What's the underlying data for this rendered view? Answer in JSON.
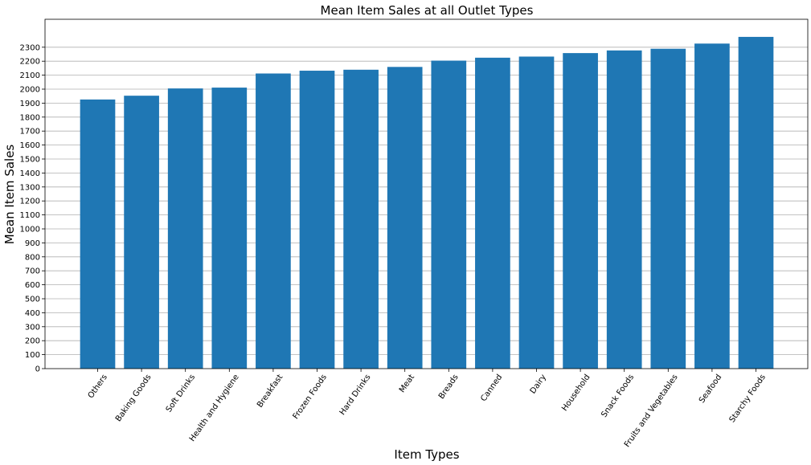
{
  "chart_data": {
    "type": "bar",
    "title": "Mean Item Sales at all Outlet Types",
    "xlabel": "Item Types",
    "ylabel": "Mean Item Sales",
    "categories": [
      "Others",
      "Baking Goods",
      "Soft Drinks",
      "Health and Hygiene",
      "Breakfast",
      "Frozen Foods",
      "Hard Drinks",
      "Meat",
      "Breads",
      "Canned",
      "Dairy",
      "Household",
      "Snack Foods",
      "Fruits and Vegetables",
      "Seafood",
      "Starchy Foods"
    ],
    "values": [
      1926,
      1953,
      2005,
      2011,
      2112,
      2132,
      2139,
      2159,
      2204,
      2225,
      2233,
      2258,
      2277,
      2289,
      2326,
      2374
    ],
    "yticks": [
      "0",
      "100",
      "200",
      "300",
      "400",
      "500",
      "600",
      "700",
      "800",
      "900",
      "1000",
      "1100",
      "1200",
      "1300",
      "1400",
      "1500",
      "1600",
      "1700",
      "1800",
      "1900",
      "2000",
      "2100",
      "2200",
      "2300"
    ],
    "ylim": [
      0,
      2500
    ],
    "grid": "horizontal",
    "color": "#1f77b4"
  }
}
